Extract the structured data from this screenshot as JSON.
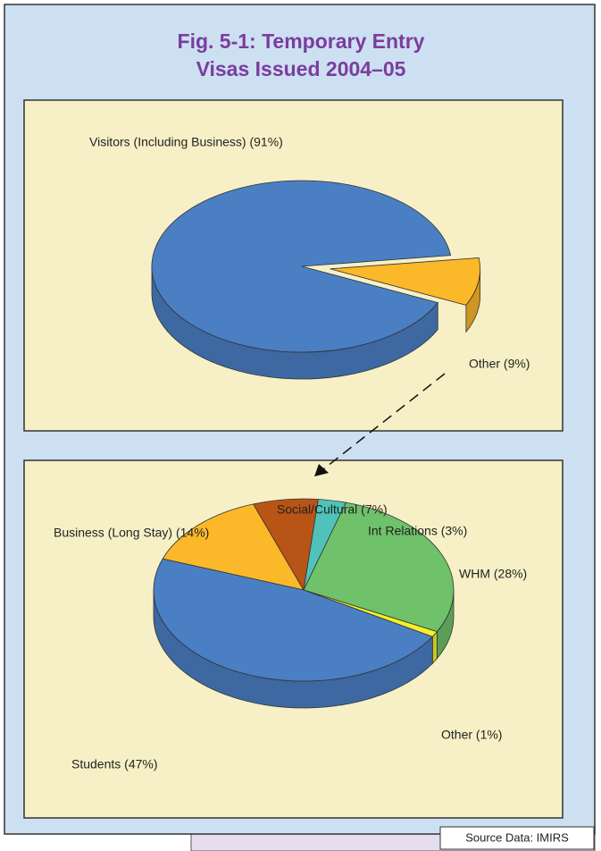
{
  "title": [
    "Fig. 5-1:  Temporary Entry",
    "Visas Issued 2004–05"
  ],
  "source": "Source Data: IMIRS",
  "chart_data": [
    {
      "type": "pie",
      "values": [
        91,
        9
      ],
      "value_labels": [
        "Visitors (Including Business) (91%)",
        "Other (9%)"
      ],
      "colors": [
        "#4a7fc4",
        "#fbb829"
      ],
      "explode": [
        false,
        true
      ]
    },
    {
      "type": "pie",
      "values": [
        14,
        7,
        3,
        28,
        1,
        47
      ],
      "value_labels": [
        "Business (Long Stay) (14%)",
        "Social/Cultural (7%)",
        "Int Relations (3%)",
        "WHM (28%)",
        "Other (1%)",
        "Students (47%)"
      ],
      "colors": [
        "#fbb829",
        "#b85416",
        "#4fc3b9",
        "#6fc16a",
        "#f5ef2a",
        "#4a7fc4"
      ],
      "explode": [
        false,
        false,
        false,
        false,
        false,
        false
      ]
    }
  ]
}
